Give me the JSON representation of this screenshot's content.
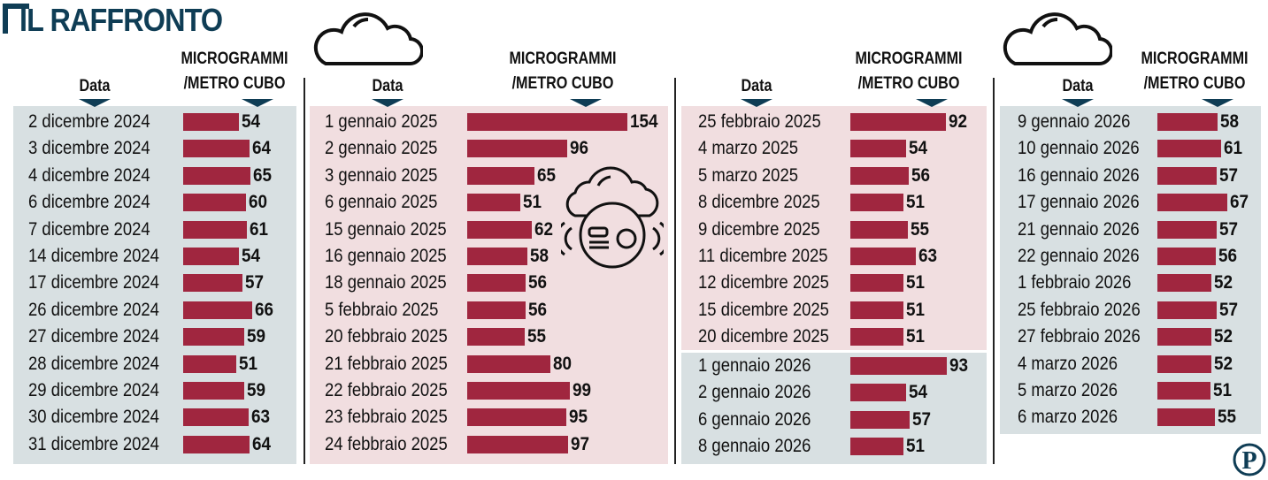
{
  "title": "IL RAFFRONTO",
  "colors": {
    "bar": "#a0263f",
    "panel_2024_2026": "#d8e0e2",
    "panel_2025": "#f1dee0",
    "title": "#0f3d55"
  },
  "icons": [
    "cloud-icon",
    "cloud-sensor-icon",
    "publisher-logo-p"
  ],
  "chart_data": {
    "type": "bar",
    "orientation": "horizontal",
    "column_headers": {
      "date": "Data",
      "value": "MICROGRAMMI /METRO CUBO",
      "value_line1": "MICROGRAMMI",
      "value_line2": "/METRO CUBO"
    },
    "columns": [
      {
        "categories": [
          "2 dicembre 2024",
          "3 dicembre 2024",
          "4 dicembre 2024",
          "6 dicembre 2024",
          "7 dicembre 2024",
          "14 dicembre 2024",
          "17 dicembre 2024",
          "26 dicembre 2024",
          "27 dicembre 2024",
          "28 dicembre 2024",
          "29 dicembre 2024",
          "30 dicembre 2024",
          "31 dicembre 2024"
        ],
        "values": [
          54,
          64,
          65,
          60,
          61,
          54,
          57,
          66,
          59,
          51,
          59,
          63,
          64
        ]
      },
      {
        "categories": [
          "1 gennaio 2025",
          "2 gennaio 2025",
          "3 gennaio 2025",
          "6 gennaio 2025",
          "15 gennaio 2025",
          "16 gennaio 2025",
          "18 gennaio 2025",
          "5 febbraio 2025",
          "20 febbraio 2025",
          "21 febbraio 2025",
          "22 febbraio 2025",
          "23 febbraio 2025",
          "24 febbraio 2025"
        ],
        "values": [
          154,
          96,
          65,
          51,
          62,
          58,
          56,
          56,
          55,
          80,
          99,
          95,
          97
        ]
      },
      {
        "categories": [
          "25 febbraio 2025",
          "4 marzo 2025",
          "5 marzo 2025",
          "8 dicembre 2025",
          "9 dicembre 2025",
          "11 dicembre 2025",
          "12 dicembre 2025",
          "15 dicembre 2025",
          "20 dicembre 2025",
          "1 gennaio 2026",
          "2 gennaio 2026",
          "6 gennaio 2026",
          "8 gennaio 2026"
        ],
        "values": [
          92,
          54,
          56,
          51,
          55,
          63,
          51,
          51,
          51,
          93,
          54,
          57,
          51
        ]
      },
      {
        "categories": [
          "9 gennaio 2026",
          "10 gennaio 2026",
          "16 gennaio 2026",
          "17 gennaio 2026",
          "21 gennaio 2026",
          "22 gennaio 2026",
          "1 febbraio 2026",
          "25 febbraio 2026",
          "27 febbraio 2026",
          "4 marzo 2026",
          "5 marzo 2026",
          "6 marzo 2026"
        ],
        "values": [
          58,
          61,
          57,
          67,
          57,
          56,
          52,
          57,
          52,
          52,
          51,
          55
        ]
      }
    ]
  }
}
